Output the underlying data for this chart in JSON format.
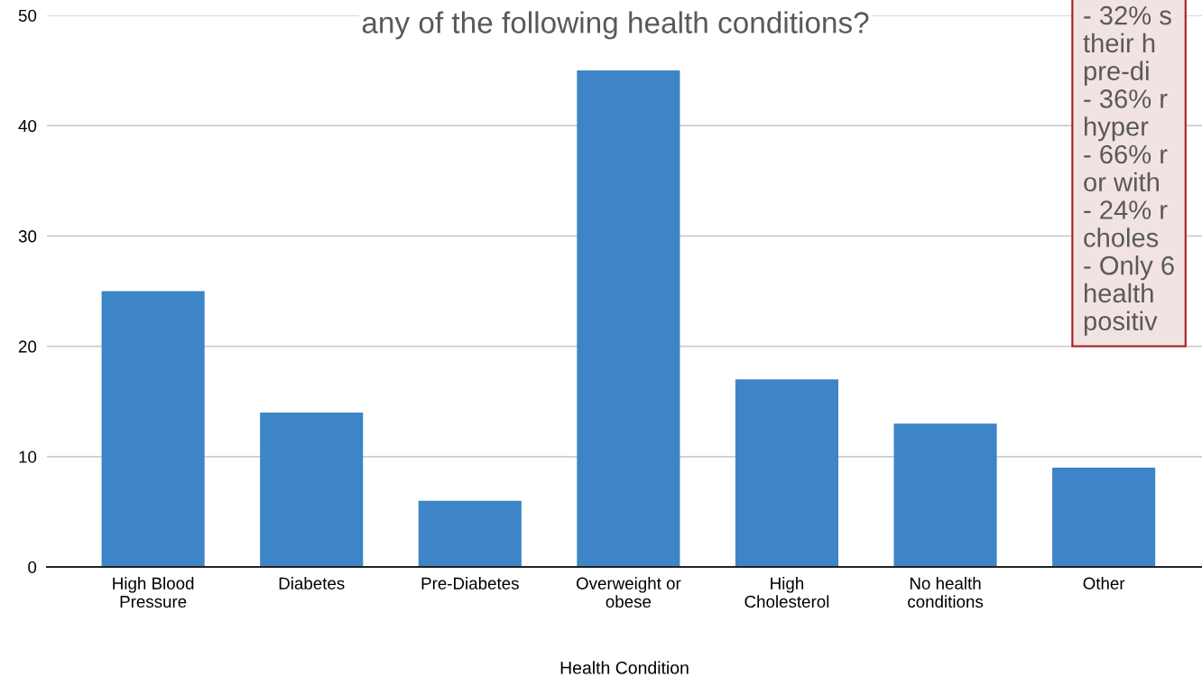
{
  "chart_data": {
    "type": "bar",
    "title": "any of the following health conditions?",
    "xlabel": "Health Condition",
    "categories": [
      "High Blood\nPressure",
      "Diabetes",
      "Pre-Diabetes",
      "Overweight or\nobese",
      "High\nCholesterol",
      "No health\nconditions",
      "Other"
    ],
    "values": [
      25,
      14,
      6,
      45,
      17,
      13,
      9
    ],
    "color": "#3d85c6",
    "ylim": [
      0,
      50
    ],
    "yticks": [
      0,
      10,
      20,
      30,
      40,
      50
    ],
    "grid": "y",
    "annotations": [
      "- 32% s\ntheir h\npre-di\n- 36% r\nhyper\n- 66% r\nor with\n- 24% r\ncholes\n- Only 6\nhealth\npositiv"
    ]
  }
}
